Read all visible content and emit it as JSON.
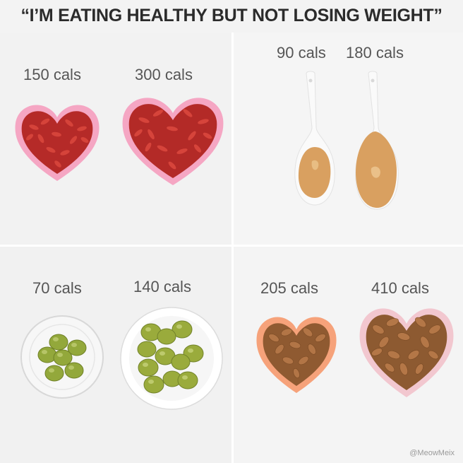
{
  "headline": "“I’M EATING HEALTHY BUT NOT LOSING WEIGHT”",
  "panels": {
    "goji": {
      "small": "150 cals",
      "large": "300 cals",
      "colors": {
        "dish": "#f5a6c3",
        "berry": "#c9332c"
      }
    },
    "peanut_butter": {
      "small": "90 cals",
      "large": "180 cals",
      "colors": {
        "spoon": "#fafafa",
        "butter": "#d9a060"
      }
    },
    "olives": {
      "small": "70 cals",
      "large": "140 cals",
      "colors": {
        "olive": "#93a83b",
        "bowl": "#ffffff"
      }
    },
    "almonds": {
      "small": "205 cals",
      "large": "410 cals",
      "colors": {
        "dish_orange": "#f6a27a",
        "dish_pink": "#f2c7cf",
        "almond": "#b07344"
      }
    }
  },
  "watermark": "@MeowMeix"
}
